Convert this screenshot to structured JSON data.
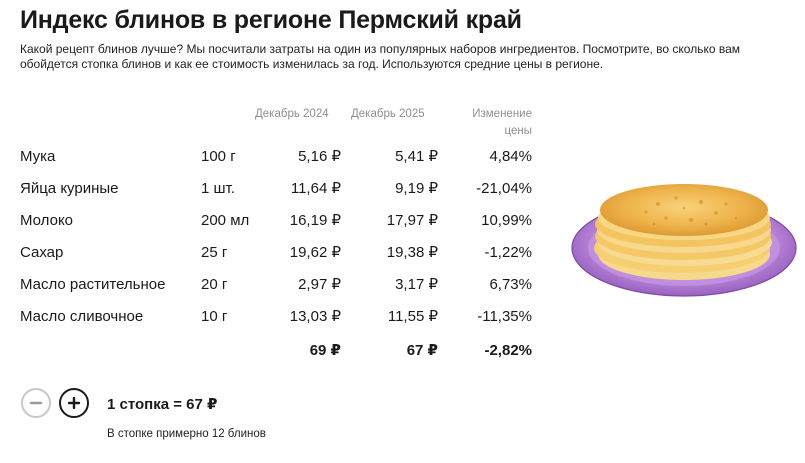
{
  "header": {
    "title": "Индекс блинов в регионе Пермский край",
    "intro": "Какой рецепт блинов лучше? Мы посчитали затраты на один из популярных наборов ингредиентов. Посмотрите, во сколько вам обойдется стопка блинов и как ее стоимость изменилась за год. Используются средние цены в регионе."
  },
  "table": {
    "columns": {
      "dec2024": "Декабрь 2024",
      "dec2025": "Декабрь 2025",
      "change": "Изменение цены"
    },
    "rows": [
      {
        "name": "Мука",
        "qty": "100 г",
        "dec2024": "5,16 ₽",
        "dec2025": "5,41 ₽",
        "change": "4,84%"
      },
      {
        "name": "Яйца куриные",
        "qty": "1 шт.",
        "dec2024": "11,64 ₽",
        "dec2025": "9,19 ₽",
        "change": "-21,04%"
      },
      {
        "name": "Молоко",
        "qty": "200 мл",
        "dec2024": "16,19 ₽",
        "dec2025": "17,97 ₽",
        "change": "10,99%"
      },
      {
        "name": "Сахар",
        "qty": "25 г",
        "dec2024": "19,62 ₽",
        "dec2025": "19,38 ₽",
        "change": "-1,22%"
      },
      {
        "name": "Масло растительное",
        "qty": "20 г",
        "dec2024": "2,97 ₽",
        "dec2025": "3,17 ₽",
        "change": "6,73%"
      },
      {
        "name": "Масло сливочное",
        "qty": "10 г",
        "dec2024": "13,03 ₽",
        "dec2025": "11,55 ₽",
        "change": "-11,35%"
      }
    ],
    "totals": {
      "dec2024": "69 ₽",
      "dec2025": "67 ₽",
      "change": "-2,82%"
    }
  },
  "stepper": {
    "minus_icon": "minus-icon",
    "plus_icon": "plus-icon",
    "summary": "1 стопка = 67 ₽",
    "note": "В стопке примерно 12 блинов"
  },
  "colors": {
    "plate": "#b57fd6",
    "pancake": "#f5c45a"
  }
}
